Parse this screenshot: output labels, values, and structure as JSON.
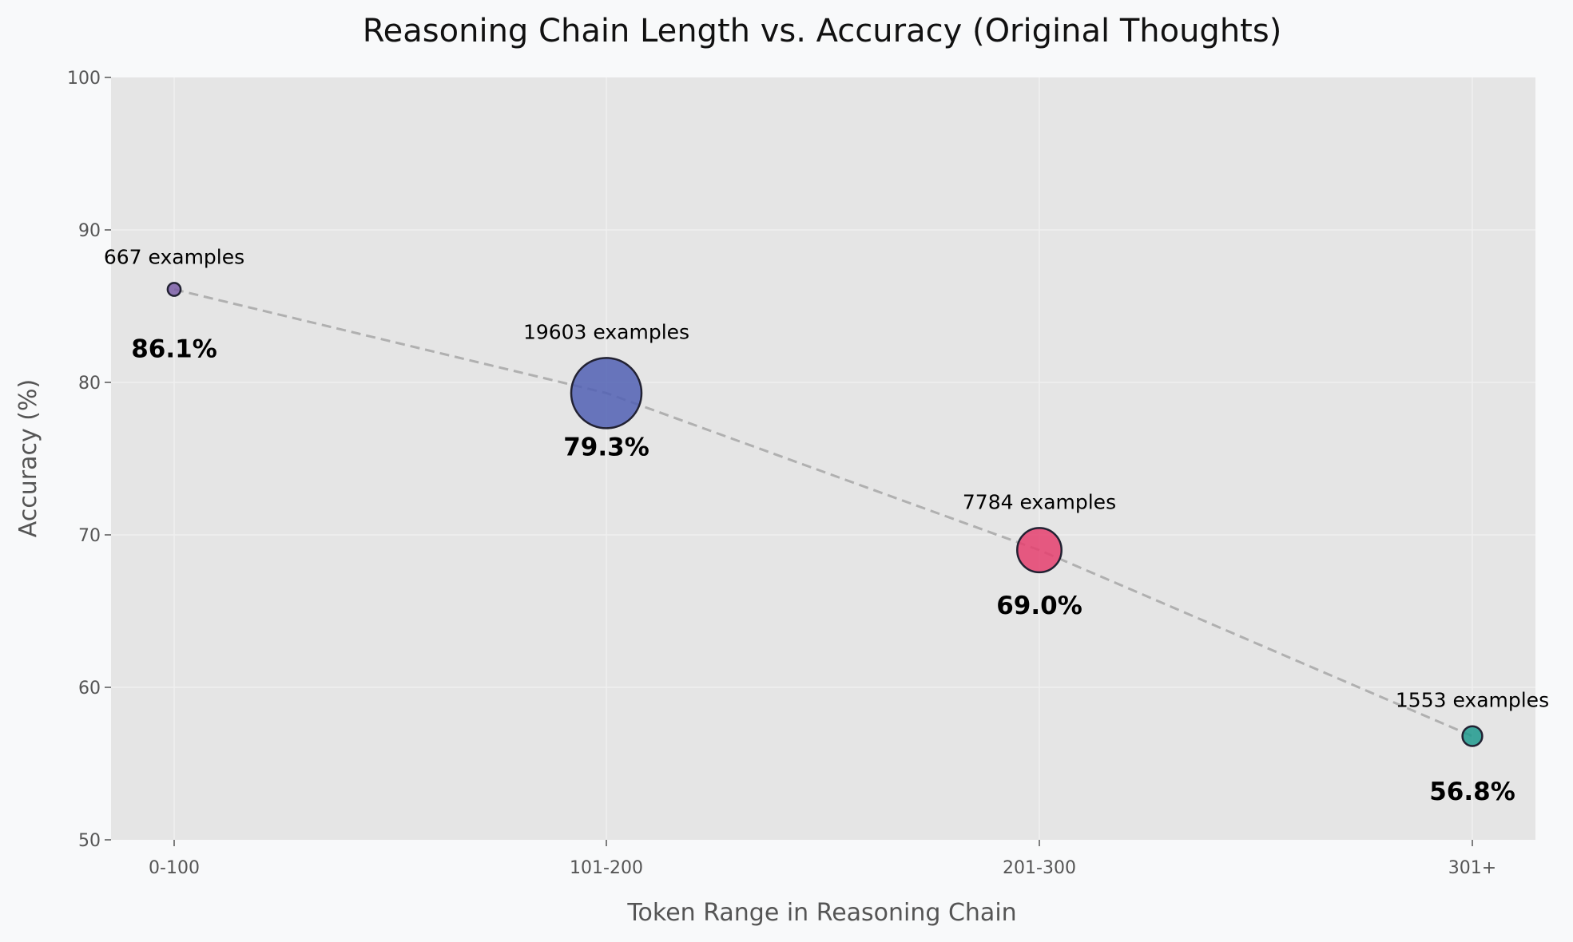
{
  "chart_data": {
    "type": "scatter",
    "title": "Reasoning Chain Length vs. Accuracy (Original Thoughts)",
    "xlabel": "Token Range in Reasoning Chain",
    "ylabel": "Accuracy (%)",
    "categories": [
      "0-100",
      "101-200",
      "201-300",
      "301+"
    ],
    "values": [
      86.1,
      79.3,
      69.0,
      56.8
    ],
    "value_labels": [
      "86.1%",
      "79.3%",
      "69.0%",
      "56.8%"
    ],
    "counts": [
      667,
      19603,
      7784,
      1553
    ],
    "count_labels": [
      "667 examples",
      "19603 examples",
      "7784 examples",
      "1553 examples"
    ],
    "ylim": [
      50,
      100
    ],
    "yticks": [
      50,
      60,
      70,
      80,
      90,
      100
    ],
    "grid": true,
    "connector": "dashed",
    "colors": {
      "points": [
        "#7b5ea7",
        "#5160b4",
        "#e5406f",
        "#1e9a8e"
      ],
      "connector": "#b0b0b0",
      "plot_background": "#e5e5e5",
      "figure_background": "#f8f9fa",
      "grid": "#f0f0f0"
    }
  }
}
